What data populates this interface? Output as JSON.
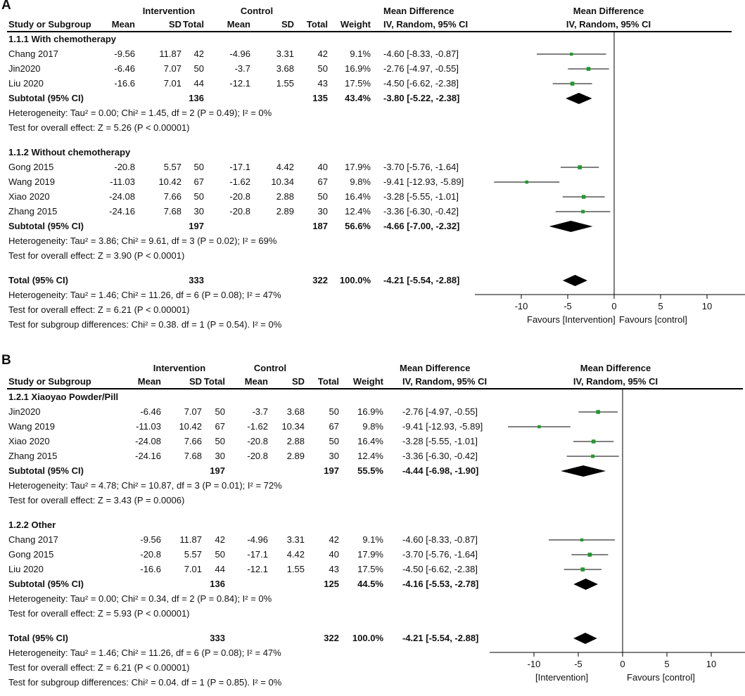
{
  "chart_data": [
    {
      "type": "forest",
      "panel_label": "A",
      "header": {
        "intervention_label": "Intervention",
        "control_label": "Control",
        "md_group_label": "Mean Difference",
        "plot_group_label": "Mean Difference",
        "study_label": "Study or Subgroup",
        "mean_label": "Mean",
        "sd_label": "SD",
        "total_label": "Total",
        "mean2_label": "Mean",
        "sd2_label": "SD",
        "total2_label": "Total",
        "weight_label": "Weight",
        "md_sub_label": "IV, Random, 95% CI",
        "plot_sub_label": "IV, Random, 95% CI"
      },
      "subgroups": [
        {
          "title": "1.1.1 With chemotherapy",
          "studies": [
            {
              "name": "Chang 2017",
              "mean1": "-9.56",
              "sd1": "11.87",
              "n1": "42",
              "mean2": "-4.96",
              "sd2": "3.31",
              "n2": "42",
              "weight": "9.1%",
              "ci_text": "-4.60 [-8.33, -0.87]",
              "md": -4.6,
              "lo": -8.33,
              "hi": -0.87
            },
            {
              "name": "Jin2020",
              "mean1": "-6.46",
              "sd1": "7.07",
              "n1": "50",
              "mean2": "-3.7",
              "sd2": "3.68",
              "n2": "50",
              "weight": "16.9%",
              "ci_text": "-2.76 [-4.97, -0.55]",
              "md": -2.76,
              "lo": -4.97,
              "hi": -0.55
            },
            {
              "name": "Liu 2020",
              "mean1": "-16.6",
              "sd1": "7.01",
              "n1": "44",
              "mean2": "-12.1",
              "sd2": "1.55",
              "n2": "43",
              "weight": "17.5%",
              "ci_text": "-4.50 [-6.62, -2.38]",
              "md": -4.5,
              "lo": -6.62,
              "hi": -2.38
            }
          ],
          "subtotal": {
            "label": "Subtotal (95% CI)",
            "n1": "136",
            "n2": "135",
            "weight": "43.4%",
            "ci_text": "-3.80 [-5.22, -2.38]",
            "md": -3.8,
            "lo": -5.22,
            "hi": -2.38
          },
          "heterogeneity": "Heterogeneity: Tau² = 0.00; Chi² = 1.45, df = 2 (P = 0.49); I² = 0%",
          "overall": "Test for overall effect: Z = 5.26 (P < 0.00001)"
        },
        {
          "title": "1.1.2 Without chemotherapy",
          "studies": [
            {
              "name": "Gong 2015",
              "mean1": "-20.8",
              "sd1": "5.57",
              "n1": "50",
              "mean2": "-17.1",
              "sd2": "4.42",
              "n2": "40",
              "weight": "17.9%",
              "ci_text": "-3.70 [-5.76, -1.64]",
              "md": -3.7,
              "lo": -5.76,
              "hi": -1.64
            },
            {
              "name": "Wang 2019",
              "mean1": "-11.03",
              "sd1": "10.42",
              "n1": "67",
              "mean2": "-1.62",
              "sd2": "10.34",
              "n2": "67",
              "weight": "9.8%",
              "ci_text": "-9.41 [-12.93, -5.89]",
              "md": -9.41,
              "lo": -12.93,
              "hi": -5.89
            },
            {
              "name": "Xiao 2020",
              "mean1": "-24.08",
              "sd1": "7.66",
              "n1": "50",
              "mean2": "-20.8",
              "sd2": "2.88",
              "n2": "50",
              "weight": "16.4%",
              "ci_text": "-3.28 [-5.55, -1.01]",
              "md": -3.28,
              "lo": -5.55,
              "hi": -1.01
            },
            {
              "name": "Zhang 2015",
              "mean1": "-24.16",
              "sd1": "7.68",
              "n1": "30",
              "mean2": "-20.8",
              "sd2": "2.89",
              "n2": "30",
              "weight": "12.4%",
              "ci_text": "-3.36 [-6.30, -0.42]",
              "md": -3.36,
              "lo": -6.3,
              "hi": -0.42
            }
          ],
          "subtotal": {
            "label": "Subtotal (95% CI)",
            "n1": "197",
            "n2": "187",
            "weight": "56.6%",
            "ci_text": "-4.66 [-7.00, -2.32]",
            "md": -4.66,
            "lo": -7.0,
            "hi": -2.32
          },
          "heterogeneity": "Heterogeneity: Tau² = 3.86; Chi² = 9.61, df = 3 (P = 0.02); I² = 69%",
          "overall": "Test for overall effect: Z = 3.90 (P < 0.0001)"
        }
      ],
      "total": {
        "label": "Total (95% CI)",
        "n1": "333",
        "n2": "322",
        "weight": "100.0%",
        "ci_text": "-4.21 [-5.54, -2.88]",
        "md": -4.21,
        "lo": -5.54,
        "hi": -2.88
      },
      "total_heterogeneity": "Heterogeneity: Tau² = 1.46; Chi² = 11.26, df = 6 (P = 0.08); I² = 47%",
      "total_overall": "Test for overall effect: Z = 6.21 (P < 0.00001)",
      "subgroup_diff": "Test for subgroup differences: Chi² = 0.38. df = 1 (P = 0.54). I² = 0%",
      "x_axis": {
        "min": -15,
        "max": 15,
        "ticks": [
          -10,
          -5,
          0,
          5,
          10
        ],
        "tick_labels": [
          "-10",
          "-5",
          "0",
          "5",
          "10"
        ]
      },
      "favours_left": "Favours [Intervention]",
      "favours_right": "Favours [control]",
      "marker_color": "#1f9a2e",
      "diamond_color": "#000000"
    },
    {
      "type": "forest",
      "panel_label": "B",
      "header": {
        "intervention_label": "Intervention",
        "control_label": "Control",
        "md_group_label": "Mean Difference",
        "plot_group_label": "Mean Difference",
        "study_label": "Study or Subgroup",
        "mean_label": "Mean",
        "sd_label": "SD",
        "total_label": "Total",
        "mean2_label": "Mean",
        "sd2_label": "SD",
        "total2_label": "Total",
        "weight_label": "Weight",
        "md_sub_label": "IV, Random, 95% CI",
        "plot_sub_label": "IV, Random, 95% CI"
      },
      "subgroups": [
        {
          "title": "1.2.1 Xiaoyao Powder/Pill",
          "studies": [
            {
              "name": "Jin2020",
              "mean1": "-6.46",
              "sd1": "7.07",
              "n1": "50",
              "mean2": "-3.7",
              "sd2": "3.68",
              "n2": "50",
              "weight": "16.9%",
              "ci_text": "-2.76 [-4.97, -0.55]",
              "md": -2.76,
              "lo": -4.97,
              "hi": -0.55
            },
            {
              "name": "Wang 2019",
              "mean1": "-11.03",
              "sd1": "10.42",
              "n1": "67",
              "mean2": "-1.62",
              "sd2": "10.34",
              "n2": "67",
              "weight": "9.8%",
              "ci_text": "-9.41 [-12.93, -5.89]",
              "md": -9.41,
              "lo": -12.93,
              "hi": -5.89
            },
            {
              "name": "Xiao 2020",
              "mean1": "-24.08",
              "sd1": "7.66",
              "n1": "50",
              "mean2": "-20.8",
              "sd2": "2.88",
              "n2": "50",
              "weight": "16.4%",
              "ci_text": "-3.28 [-5.55, -1.01]",
              "md": -3.28,
              "lo": -5.55,
              "hi": -1.01
            },
            {
              "name": "Zhang 2015",
              "mean1": "-24.16",
              "sd1": "7.68",
              "n1": "30",
              "mean2": "-20.8",
              "sd2": "2.89",
              "n2": "30",
              "weight": "12.4%",
              "ci_text": "-3.36 [-6.30, -0.42]",
              "md": -3.36,
              "lo": -6.3,
              "hi": -0.42
            }
          ],
          "subtotal": {
            "label": "Subtotal (95% CI)",
            "n1": "197",
            "n2": "197",
            "weight": "55.5%",
            "ci_text": "-4.44 [-6.98, -1.90]",
            "md": -4.44,
            "lo": -6.98,
            "hi": -1.9
          },
          "heterogeneity": "Heterogeneity: Tau² = 4.78; Chi² = 10.87, df = 3 (P = 0.01); I² = 72%",
          "overall": "Test for overall effect: Z = 3.43 (P = 0.0006)"
        },
        {
          "title": "1.2.2 Other",
          "studies": [
            {
              "name": "Chang 2017",
              "mean1": "-9.56",
              "sd1": "11.87",
              "n1": "42",
              "mean2": "-4.96",
              "sd2": "3.31",
              "n2": "42",
              "weight": "9.1%",
              "ci_text": "-4.60 [-8.33, -0.87]",
              "md": -4.6,
              "lo": -8.33,
              "hi": -0.87
            },
            {
              "name": "Gong 2015",
              "mean1": "-20.8",
              "sd1": "5.57",
              "n1": "50",
              "mean2": "-17.1",
              "sd2": "4.42",
              "n2": "40",
              "weight": "17.9%",
              "ci_text": "-3.70 [-5.76, -1.64]",
              "md": -3.7,
              "lo": -5.76,
              "hi": -1.64
            },
            {
              "name": "Liu 2020",
              "mean1": "-16.6",
              "sd1": "7.01",
              "n1": "44",
              "mean2": "-12.1",
              "sd2": "1.55",
              "n2": "43",
              "weight": "17.5%",
              "ci_text": "-4.50 [-6.62, -2.38]",
              "md": -4.5,
              "lo": -6.62,
              "hi": -2.38
            }
          ],
          "subtotal": {
            "label": "Subtotal (95% CI)",
            "n1": "136",
            "n2": "125",
            "weight": "44.5%",
            "ci_text": "-4.16 [-5.53, -2.78]",
            "md": -4.16,
            "lo": -5.53,
            "hi": -2.78
          },
          "heterogeneity": "Heterogeneity: Tau² = 0.00; Chi² = 0.34, df = 2 (P = 0.84); I² = 0%",
          "overall": "Test for overall effect: Z = 5.93 (P < 0.00001)"
        }
      ],
      "total": {
        "label": "Total (95% CI)",
        "n1": "333",
        "n2": "322",
        "weight": "100.0%",
        "ci_text": "-4.21 [-5.54, -2.88]",
        "md": -4.21,
        "lo": -5.54,
        "hi": -2.88
      },
      "total_heterogeneity": "Heterogeneity: Tau² = 1.46; Chi² = 11.26, df = 6 (P = 0.08); I² = 47%",
      "total_overall": "Test for overall effect: Z = 6.21 (P < 0.00001)",
      "subgroup_diff": "Test for subgroup differences: Chi² = 0.04. df = 1 (P = 0.85). I² = 0%",
      "x_axis": {
        "min": -15,
        "max": 15,
        "ticks": [
          -10,
          -5,
          0,
          5,
          10
        ],
        "tick_labels": [
          "-10",
          "-5",
          "0",
          "5",
          "10"
        ]
      },
      "favours_left": "[Intervention]",
      "favours_right": "Favours [control]",
      "marker_color": "#1f9a2e",
      "diamond_color": "#000000"
    }
  ]
}
